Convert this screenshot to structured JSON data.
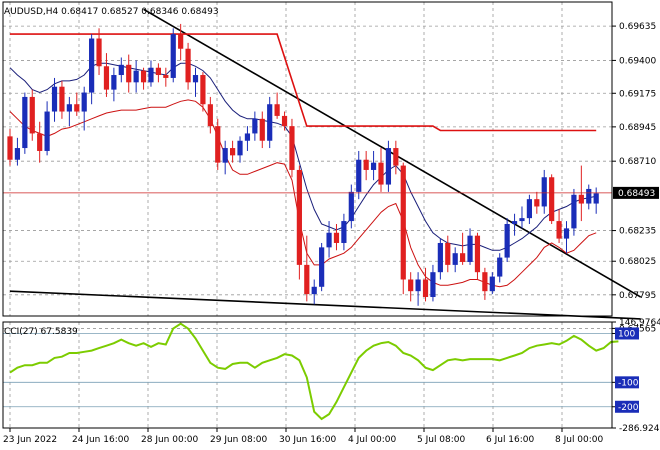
{
  "chart_data": [
    {
      "type": "candlestick",
      "title": "AUDUSD,H4  0.68417 0.68527 0.68346 0.68493",
      "symbol": "AUDUSD",
      "timeframe": "H4",
      "ohlc_readout": {
        "open": 0.68417,
        "high": 0.68527,
        "low": 0.68346,
        "close": 0.68493
      },
      "ylim": [
        0.6765,
        0.698
      ],
      "y_ticks": [
        "0.69635",
        "0.69400",
        "0.69175",
        "0.68945",
        "0.68710",
        "0.68235",
        "0.68025",
        "0.67795",
        "0.67565"
      ],
      "y_tick_values": [
        0.69635,
        0.694,
        0.69175,
        0.68945,
        0.6871,
        0.68235,
        0.68025,
        0.67795,
        0.67565
      ],
      "current_price_label": "0.68493",
      "current_price": 0.68493,
      "x_ticks": [
        "23 Jun 2022",
        "24 Jun 16:00",
        "28 Jun 00:00",
        "29 Jun 08:00",
        "30 Jun 16:00",
        "4 Jul 00:00",
        "5 Jul 08:00",
        "6 Jul 16:00",
        "8 Jul 00:00"
      ],
      "colors": {
        "up": "#1a2db8",
        "down": "#e02020",
        "bb_mid": "#1a1f7a",
        "bb_lower": "#cc1111",
        "stop": "#dd1111",
        "trend": "#000000",
        "price_line": "#cc2222"
      },
      "candles": [
        [
          0.6888,
          0.6893,
          0.6868,
          0.6872
        ],
        [
          0.6872,
          0.6887,
          0.6868,
          0.688
        ],
        [
          0.688,
          0.6918,
          0.6876,
          0.6915
        ],
        [
          0.6915,
          0.692,
          0.6885,
          0.689
        ],
        [
          0.689,
          0.6898,
          0.687,
          0.6878
        ],
        [
          0.6878,
          0.6912,
          0.6875,
          0.6905
        ],
        [
          0.6905,
          0.6928,
          0.6898,
          0.6922
        ],
        [
          0.6922,
          0.6926,
          0.69,
          0.6905
        ],
        [
          0.6905,
          0.6915,
          0.6895,
          0.691
        ],
        [
          0.691,
          0.6918,
          0.6902,
          0.6905
        ],
        [
          0.6905,
          0.6922,
          0.6892,
          0.6918
        ],
        [
          0.6918,
          0.6958,
          0.691,
          0.6955
        ],
        [
          0.6955,
          0.6962,
          0.693,
          0.6936
        ],
        [
          0.6936,
          0.6945,
          0.6915,
          0.692
        ],
        [
          0.692,
          0.6935,
          0.6912,
          0.693
        ],
        [
          0.693,
          0.6942,
          0.6925,
          0.6937
        ],
        [
          0.6937,
          0.6944,
          0.6918,
          0.6925
        ],
        [
          0.6925,
          0.694,
          0.6918,
          0.6933
        ],
        [
          0.6933,
          0.6935,
          0.692,
          0.6925
        ],
        [
          0.6925,
          0.694,
          0.6922,
          0.6935
        ],
        [
          0.6935,
          0.6938,
          0.6925,
          0.693
        ],
        [
          0.693,
          0.6935,
          0.6922,
          0.6928
        ],
        [
          0.6928,
          0.6962,
          0.6925,
          0.6958
        ],
        [
          0.6958,
          0.6965,
          0.694,
          0.6948
        ],
        [
          0.6948,
          0.6952,
          0.692,
          0.6925
        ],
        [
          0.6925,
          0.6935,
          0.6915,
          0.693
        ],
        [
          0.693,
          0.6932,
          0.6905,
          0.691
        ],
        [
          0.691,
          0.6915,
          0.689,
          0.6895
        ],
        [
          0.6895,
          0.69,
          0.6865,
          0.687
        ],
        [
          0.687,
          0.6885,
          0.6862,
          0.688
        ],
        [
          0.688,
          0.6885,
          0.687,
          0.6875
        ],
        [
          0.6875,
          0.6888,
          0.687,
          0.6885
        ],
        [
          0.6885,
          0.6895,
          0.6878,
          0.689
        ],
        [
          0.689,
          0.6905,
          0.6885,
          0.69
        ],
        [
          0.69,
          0.6905,
          0.688,
          0.6885
        ],
        [
          0.6885,
          0.6915,
          0.688,
          0.691
        ],
        [
          0.691,
          0.6918,
          0.69,
          0.6902
        ],
        [
          0.6902,
          0.6905,
          0.6892,
          0.6895
        ],
        [
          0.6895,
          0.69,
          0.686,
          0.6865
        ],
        [
          0.6865,
          0.6868,
          0.679,
          0.68
        ],
        [
          0.68,
          0.682,
          0.6775,
          0.678
        ],
        [
          0.678,
          0.679,
          0.6773,
          0.6785
        ],
        [
          0.6785,
          0.6815,
          0.6782,
          0.6812
        ],
        [
          0.6812,
          0.683,
          0.6805,
          0.6822
        ],
        [
          0.6822,
          0.6828,
          0.681,
          0.6815
        ],
        [
          0.6815,
          0.6835,
          0.681,
          0.683
        ],
        [
          0.683,
          0.6855,
          0.6825,
          0.685
        ],
        [
          0.685,
          0.6878,
          0.6845,
          0.6872
        ],
        [
          0.6872,
          0.6878,
          0.6858,
          0.6865
        ],
        [
          0.6865,
          0.6878,
          0.6858,
          0.687
        ],
        [
          0.687,
          0.688,
          0.685,
          0.6855
        ],
        [
          0.6855,
          0.6885,
          0.685,
          0.688
        ],
        [
          0.688,
          0.6885,
          0.6862,
          0.6868
        ],
        [
          0.6868,
          0.687,
          0.678,
          0.679
        ],
        [
          0.679,
          0.6795,
          0.6775,
          0.6782
        ],
        [
          0.6782,
          0.6795,
          0.6772,
          0.679
        ],
        [
          0.679,
          0.6798,
          0.6775,
          0.6778
        ],
        [
          0.6778,
          0.68,
          0.6775,
          0.6795
        ],
        [
          0.6795,
          0.6818,
          0.679,
          0.6815
        ],
        [
          0.6815,
          0.682,
          0.6795,
          0.68
        ],
        [
          0.68,
          0.6812,
          0.6795,
          0.6808
        ],
        [
          0.6808,
          0.6822,
          0.68,
          0.6802
        ],
        [
          0.6802,
          0.6825,
          0.68,
          0.682
        ],
        [
          0.682,
          0.6822,
          0.679,
          0.6795
        ],
        [
          0.6795,
          0.6798,
          0.6776,
          0.6782
        ],
        [
          0.6782,
          0.6795,
          0.678,
          0.6792
        ],
        [
          0.6792,
          0.6808,
          0.6788,
          0.6805
        ],
        [
          0.6805,
          0.6832,
          0.6802,
          0.6828
        ],
        [
          0.6828,
          0.6835,
          0.682,
          0.683
        ],
        [
          0.683,
          0.684,
          0.6825,
          0.6832
        ],
        [
          0.6832,
          0.6848,
          0.6828,
          0.6845
        ],
        [
          0.6845,
          0.685,
          0.6835,
          0.684
        ],
        [
          0.684,
          0.6865,
          0.6835,
          0.686
        ],
        [
          0.686,
          0.6862,
          0.6828,
          0.683
        ],
        [
          0.683,
          0.6838,
          0.6815,
          0.6818
        ],
        [
          0.6818,
          0.683,
          0.6808,
          0.6825
        ],
        [
          0.6825,
          0.6852,
          0.682,
          0.6848
        ],
        [
          0.6848,
          0.6868,
          0.683,
          0.6842
        ],
        [
          0.6842,
          0.6855,
          0.6838,
          0.6852
        ],
        [
          0.6842,
          0.6853,
          0.6835,
          0.6849
        ]
      ],
      "bb_mid": [
        0.6935,
        0.693,
        0.6926,
        0.692,
        0.6918,
        0.692,
        0.6924,
        0.6926,
        0.6926,
        0.6927,
        0.693,
        0.6936,
        0.6938,
        0.6938,
        0.6937,
        0.6936,
        0.6935,
        0.6934,
        0.6933,
        0.6932,
        0.6931,
        0.693,
        0.6935,
        0.6938,
        0.6938,
        0.6936,
        0.6933,
        0.6928,
        0.692,
        0.6912,
        0.6906,
        0.6902,
        0.69,
        0.69,
        0.6899,
        0.6898,
        0.6897,
        0.6895,
        0.6888,
        0.687,
        0.6852,
        0.6838,
        0.6828,
        0.6826,
        0.6824,
        0.6826,
        0.6832,
        0.684,
        0.6848,
        0.6855,
        0.686,
        0.6865,
        0.6868,
        0.6862,
        0.685,
        0.684,
        0.683,
        0.6822,
        0.6818,
        0.6815,
        0.6814,
        0.6813,
        0.6814,
        0.6814,
        0.6812,
        0.681,
        0.681,
        0.6812,
        0.6815,
        0.6818,
        0.6822,
        0.6826,
        0.6832,
        0.6836,
        0.6838,
        0.684,
        0.6843,
        0.6845,
        0.6846,
        0.6847
      ],
      "bb_lower": [
        0.6905,
        0.69,
        0.6895,
        0.6892,
        0.689,
        0.6888,
        0.689,
        0.6893,
        0.6894,
        0.6896,
        0.6898,
        0.69,
        0.6902,
        0.6904,
        0.6905,
        0.6906,
        0.6906,
        0.6906,
        0.6907,
        0.6908,
        0.6908,
        0.6908,
        0.691,
        0.6912,
        0.6913,
        0.6912,
        0.6908,
        0.69,
        0.6888,
        0.6875,
        0.6865,
        0.6862,
        0.6862,
        0.6864,
        0.6866,
        0.6868,
        0.687,
        0.6869,
        0.6858,
        0.683,
        0.6808,
        0.68,
        0.68,
        0.6804,
        0.6806,
        0.6808,
        0.6812,
        0.6818,
        0.6824,
        0.683,
        0.6836,
        0.684,
        0.6842,
        0.683,
        0.6812,
        0.68,
        0.6792,
        0.6788,
        0.6786,
        0.6786,
        0.6787,
        0.6788,
        0.679,
        0.679,
        0.6788,
        0.6786,
        0.6785,
        0.6786,
        0.679,
        0.6795,
        0.68,
        0.6805,
        0.6812,
        0.6815,
        0.6812,
        0.6808,
        0.681,
        0.6815,
        0.682,
        0.6822
      ],
      "stop_line": [
        [
          0,
          0.6958
        ],
        [
          23,
          0.6958
        ],
        [
          23,
          0.6958
        ],
        [
          36,
          0.6958
        ],
        [
          40,
          0.6895
        ],
        [
          57,
          0.6895
        ],
        [
          58,
          0.6892
        ],
        [
          79,
          0.6892
        ]
      ],
      "trend_upper": [
        [
          18,
          0.6975
        ],
        [
          85,
          0.6778
        ]
      ],
      "trend_lower": [
        [
          0,
          0.6782
        ],
        [
          85,
          0.6763
        ]
      ]
    },
    {
      "type": "line",
      "title": "CCI(27) 67.5839",
      "indicator": "CCI",
      "period": 27,
      "last_value": 67.5839,
      "ylim": [
        -286.9243,
        146.9764
      ],
      "y_ticks": [
        "146.9764",
        "100",
        "-100",
        "-200",
        "-286.9243"
      ],
      "y_tick_values": [
        146.9764,
        100,
        -100,
        -200,
        -286.9243
      ],
      "levels": [
        100,
        -100,
        -200
      ],
      "colors": {
        "line": "#7ccc00",
        "level": "#7a9fb5"
      },
      "values": [
        -60,
        -40,
        -30,
        -30,
        -20,
        -20,
        0,
        5,
        20,
        20,
        25,
        30,
        40,
        50,
        60,
        75,
        60,
        50,
        60,
        45,
        60,
        55,
        120,
        140,
        120,
        80,
        30,
        -20,
        -40,
        -45,
        -25,
        -20,
        -20,
        -40,
        -20,
        -10,
        0,
        15,
        10,
        -10,
        -80,
        -220,
        -250,
        -230,
        -180,
        -120,
        -60,
        0,
        30,
        50,
        60,
        65,
        50,
        20,
        10,
        -10,
        -40,
        -50,
        -30,
        -10,
        -5,
        -10,
        -5,
        -5,
        -5,
        -5,
        -10,
        0,
        10,
        20,
        40,
        50,
        55,
        60,
        55,
        70,
        90,
        75,
        50,
        30,
        40,
        65,
        67.58
      ]
    }
  ]
}
